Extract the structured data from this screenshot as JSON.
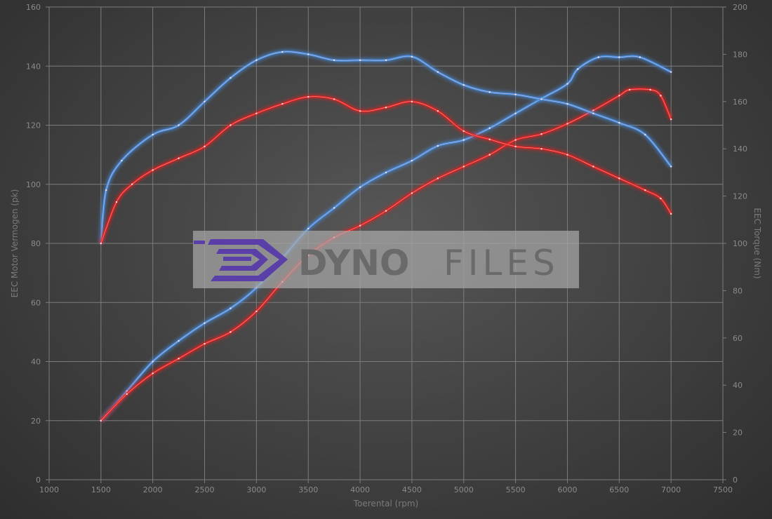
{
  "chart_data": {
    "type": "line",
    "xlabel": "Toerental (rpm)",
    "ylabel": "EEC Motor Vermogen (pk)",
    "y2label": "EEC Torque (Nm)",
    "xlim": [
      1000,
      7500
    ],
    "ylim": [
      0,
      160
    ],
    "y2lim": [
      0,
      200
    ],
    "xticks": [
      1000,
      1500,
      2000,
      2500,
      3000,
      3500,
      4000,
      4500,
      5000,
      5500,
      6000,
      6500,
      7000,
      7500
    ],
    "yticks": [
      0,
      20,
      40,
      60,
      80,
      100,
      120,
      140,
      160
    ],
    "y2ticks": [
      0,
      20,
      40,
      60,
      80,
      100,
      120,
      140,
      160,
      180,
      200
    ],
    "grid": true,
    "legend": "none",
    "series": [
      {
        "axis": "left",
        "color": "#4a8fe0",
        "x": [
          1500,
          1750,
          2000,
          2250,
          2500,
          2750,
          3000,
          3250,
          3500,
          3750,
          4000,
          4250,
          4500,
          4750,
          5000,
          5250,
          5500,
          5750,
          6000,
          6100,
          6300,
          6500,
          6700,
          7000
        ],
        "y": [
          20,
          30,
          40,
          47,
          53,
          58,
          65,
          75,
          85,
          92,
          99,
          104,
          108,
          113,
          115,
          119,
          124,
          129,
          134,
          139,
          143,
          143,
          143,
          138
        ]
      },
      {
        "axis": "left",
        "color": "#e02222",
        "x": [
          1500,
          1750,
          2000,
          2250,
          2500,
          2750,
          3000,
          3250,
          3500,
          3750,
          4000,
          4250,
          4500,
          4750,
          5000,
          5250,
          5500,
          5750,
          6000,
          6250,
          6500,
          6600,
          6800,
          6900,
          7000
        ],
        "y": [
          20,
          29,
          36,
          41,
          46,
          50,
          57,
          67,
          76,
          82,
          86,
          91,
          97,
          102,
          106,
          110,
          115,
          117,
          120.5,
          125,
          130,
          132,
          132,
          130,
          122
        ]
      },
      {
        "axis": "right",
        "color": "#4a8fe0",
        "x": [
          1500,
          1550,
          1700,
          2000,
          2250,
          2500,
          2750,
          3000,
          3250,
          3500,
          3750,
          4000,
          4250,
          4500,
          4750,
          5000,
          5250,
          5500,
          5750,
          6000,
          6250,
          6500,
          6750,
          7000
        ],
        "y": [
          100,
          122.5,
          135,
          146,
          150,
          160,
          170,
          177.5,
          181,
          180,
          177.5,
          177.5,
          177.5,
          179,
          172.5,
          167,
          164,
          163,
          161,
          159,
          155,
          151,
          146,
          132.5
        ]
      },
      {
        "axis": "right",
        "color": "#e02222",
        "x": [
          1500,
          1650,
          1800,
          2000,
          2250,
          2500,
          2750,
          3000,
          3250,
          3500,
          3750,
          4000,
          4250,
          4500,
          4750,
          5000,
          5250,
          5500,
          5750,
          6000,
          6250,
          6500,
          6750,
          6900,
          7000
        ],
        "y": [
          100,
          117.5,
          125,
          131,
          136,
          141,
          150,
          155,
          159,
          162,
          161,
          156,
          157.5,
          160,
          156,
          147.5,
          144,
          141,
          140,
          137.5,
          132.5,
          127.5,
          122.5,
          119,
          112.5
        ]
      }
    ]
  },
  "watermark": {
    "logo_text_bold": "DYNO",
    "logo_text_light": "FILES"
  }
}
